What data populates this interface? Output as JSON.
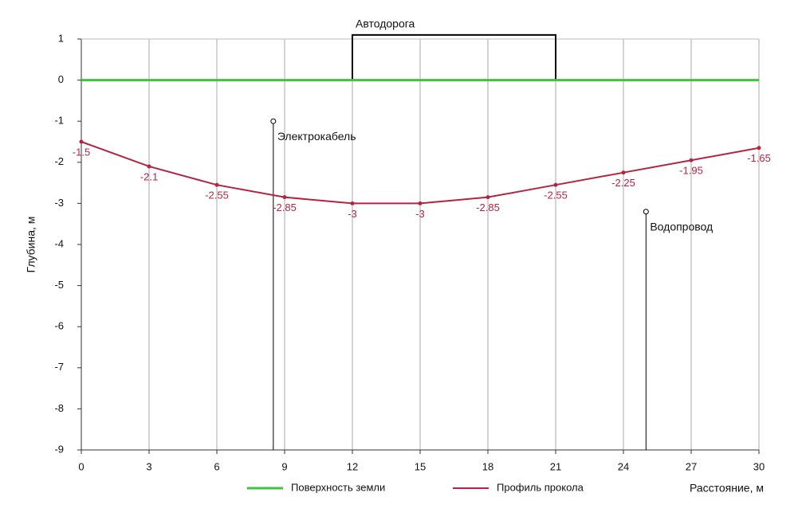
{
  "chart_data": {
    "type": "line",
    "x_label": "Расстояние, м",
    "y_label": "Глубина, м",
    "x": [
      0,
      3,
      6,
      9,
      12,
      15,
      18,
      21,
      24,
      27,
      30
    ],
    "series": [
      {
        "name": "Поверхность земли",
        "color": "#3ec43e",
        "values": [
          0,
          0,
          0,
          0,
          0,
          0,
          0,
          0,
          0,
          0,
          0
        ],
        "data_labels": false
      },
      {
        "name": "Профиль прокола",
        "color": "#b5243f",
        "values": [
          -1.5,
          -2.1,
          -2.55,
          -2.85,
          -3,
          -3,
          -2.85,
          -2.55,
          -2.25,
          -1.95,
          -1.65
        ],
        "data_labels": true
      }
    ],
    "xlim": [
      0,
      30
    ],
    "ylim": [
      -9,
      1
    ],
    "xticks": [
      0,
      3,
      6,
      9,
      12,
      15,
      18,
      21,
      24,
      27,
      30
    ],
    "yticks": [
      -9,
      -8,
      -7,
      -6,
      -5,
      -4,
      -3,
      -2,
      -1,
      0,
      1
    ],
    "grid": "x",
    "legend": "bottom",
    "annotations": [
      {
        "type": "span",
        "label": "Автодорога",
        "x": [
          12,
          21
        ],
        "y": 1.1
      },
      {
        "type": "marker",
        "label": "Электрокабель",
        "x": 8.5,
        "y": -1
      },
      {
        "type": "marker",
        "label": "Водопровод",
        "x": 25,
        "y": -3.2
      }
    ]
  }
}
